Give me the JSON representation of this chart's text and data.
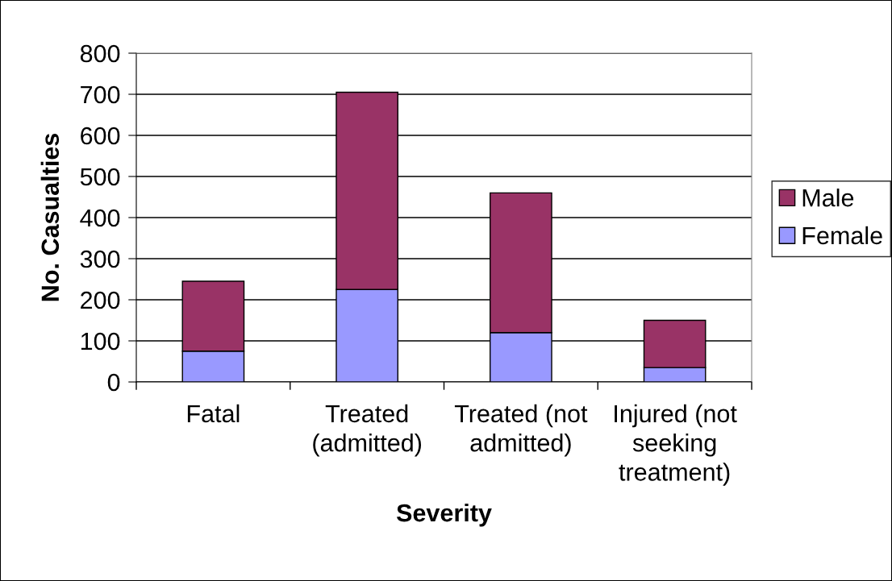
{
  "chart_data": {
    "type": "bar",
    "stacked": true,
    "xlabel": "Severity",
    "ylabel": "No. Casualties",
    "categories": [
      "Fatal",
      "Treated\n(admitted)",
      "Treated (not\nadmitted)",
      "Injured (not\nseeking\ntreatment)"
    ],
    "series": [
      {
        "name": "Female",
        "color": "#9999ff",
        "values": [
          75,
          225,
          120,
          35
        ]
      },
      {
        "name": "Male",
        "color": "#993366",
        "values": [
          170,
          480,
          340,
          115
        ]
      }
    ],
    "ylim": [
      0,
      800
    ],
    "yticks": [
      0,
      100,
      200,
      300,
      400,
      500,
      600,
      700,
      800
    ],
    "grid": "y",
    "legend": "right"
  }
}
